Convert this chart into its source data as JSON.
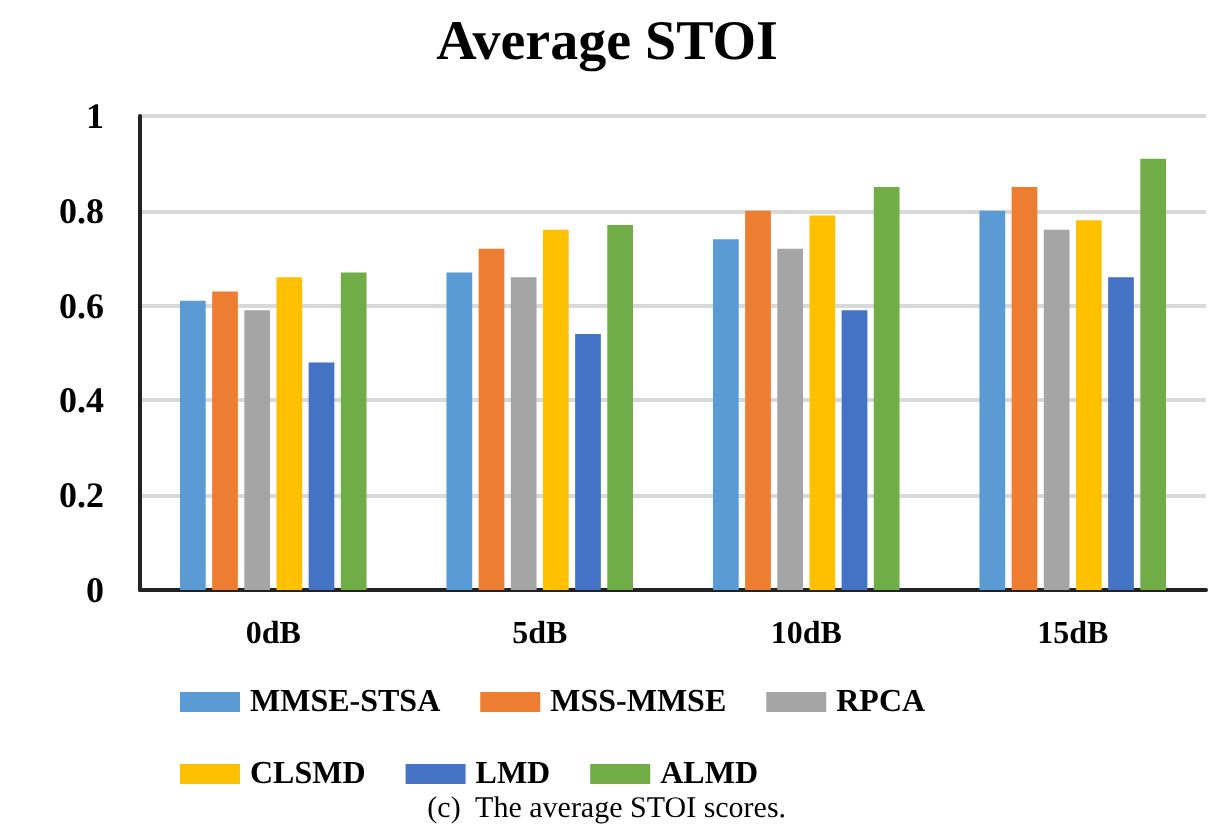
{
  "chart_data": {
    "type": "bar",
    "title": "Average STOI",
    "categories": [
      "0dB",
      "5dB",
      "10dB",
      "15dB"
    ],
    "series": [
      {
        "name": "MMSE-STSA",
        "color": "#5b9bd5",
        "values": [
          0.61,
          0.67,
          0.74,
          0.8
        ]
      },
      {
        "name": "MSS-MMSE",
        "color": "#ed7d31",
        "values": [
          0.63,
          0.72,
          0.8,
          0.85
        ]
      },
      {
        "name": "RPCA",
        "color": "#a5a5a5",
        "values": [
          0.59,
          0.66,
          0.72,
          0.76
        ]
      },
      {
        "name": "CLSMD",
        "color": "#ffc000",
        "values": [
          0.66,
          0.76,
          0.79,
          0.78
        ]
      },
      {
        "name": "LMD",
        "color": "#4472c4",
        "values": [
          0.48,
          0.54,
          0.59,
          0.66
        ]
      },
      {
        "name": "ALMD",
        "color": "#70ad47",
        "values": [
          0.67,
          0.77,
          0.85,
          0.91
        ]
      }
    ],
    "ylim": [
      0,
      1
    ],
    "yticks": [
      0,
      0.2,
      0.4,
      0.6,
      0.8,
      1
    ],
    "grid": "y",
    "legend": "bottom",
    "annotations": [
      "(c)  The average STOI scores."
    ]
  }
}
